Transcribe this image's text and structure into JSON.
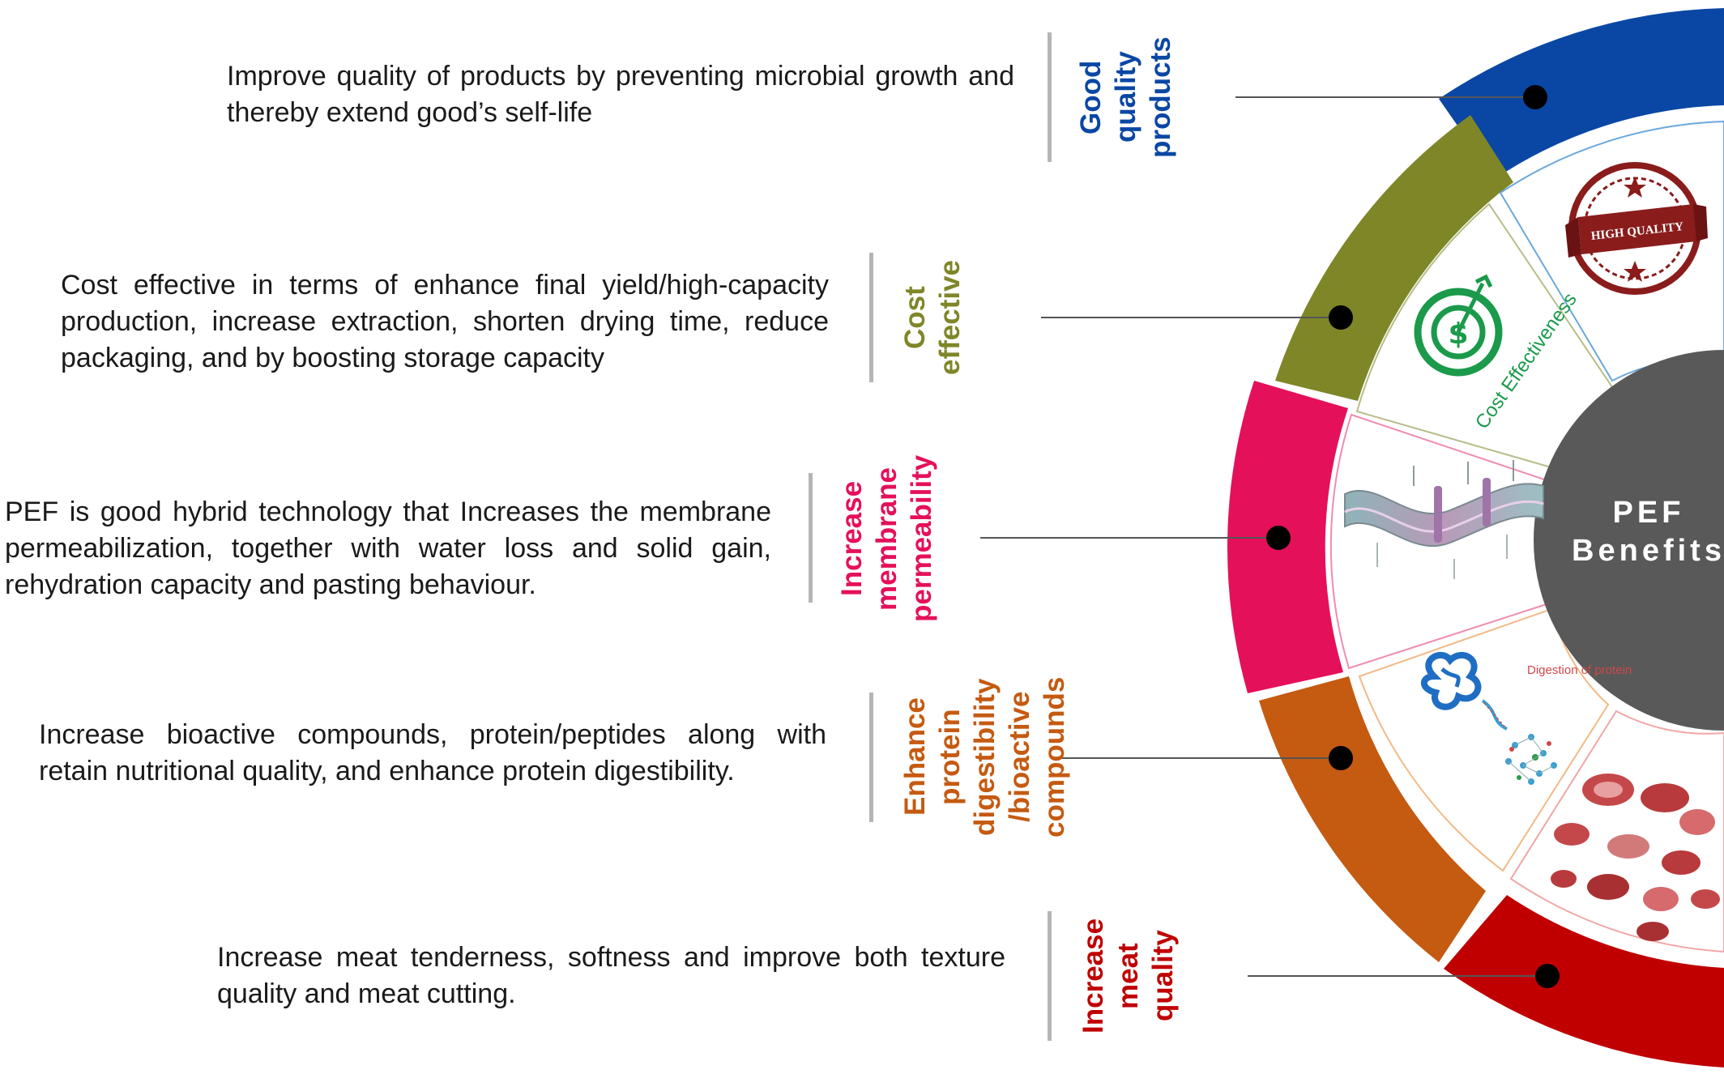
{
  "center_label": [
    "PEF",
    "Benefits"
  ],
  "benefits": [
    {
      "title": [
        "Good",
        "quality",
        "products"
      ],
      "color": "#0a47a4",
      "description": "Improve quality of products by preventing microbial growth and thereby extend  good’s self-life",
      "icon": "high-quality-stamp-icon",
      "icon_text": "HIGH QUALITY"
    },
    {
      "title": [
        "Cost",
        "effective"
      ],
      "color": "#7f8628",
      "description": "Cost effective in terms of enhance final yield/high-capacity production, increase extraction, shorten drying time, reduce packaging, and by boosting storage capacity",
      "icon": "cost-target-icon",
      "icon_text": "Cost Effectiveness"
    },
    {
      "title": [
        "Increase",
        "membrane",
        "permeability"
      ],
      "color": "#e5105a",
      "description": "PEF is good hybrid technology that Increases the membrane permeabilization, together with water loss and solid gain, rehydration capacity and pasting behaviour.",
      "icon": "cell-membrane-icon",
      "icon_text": ""
    },
    {
      "title": [
        "Enhance",
        "protein",
        "digestibility",
        "/bioactive",
        "compounds"
      ],
      "color": "#c55a11",
      "description": "Increase bioactive compounds, protein/peptides along with retain nutritional quality, and enhance protein digestibility.",
      "icon": "protein-digestion-icon",
      "icon_text": "Digestion of protein"
    },
    {
      "title": [
        "Increase",
        "meat",
        "quality"
      ],
      "color": "#c00000",
      "description": "Increase meat tenderness, softness and improve both texture quality and meat cutting.",
      "icon": "meat-cuts-icon",
      "icon_text": ""
    }
  ]
}
